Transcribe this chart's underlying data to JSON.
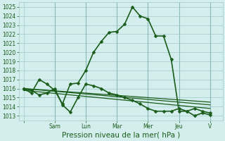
{
  "xlabel": "Pression niveau de la mer( hPa )",
  "background_color": "#d4eeed",
  "plot_bg_color": "#d4eeed",
  "grid_color": "#a8cfcf",
  "line_color": "#1a5c1a",
  "ylim": [
    1012.5,
    1025.5
  ],
  "yticks": [
    1013,
    1014,
    1015,
    1016,
    1017,
    1018,
    1019,
    1020,
    1021,
    1022,
    1023,
    1024,
    1025
  ],
  "day_labels": [
    "",
    "Sam",
    "Lun",
    "Mar",
    "Mer",
    "Jeu",
    "V"
  ],
  "day_positions": [
    0,
    2,
    4,
    6,
    8,
    10,
    12
  ],
  "xlim": [
    -0.3,
    12.8
  ],
  "series": [
    {
      "x": [
        0,
        0.5,
        1,
        1.5,
        2,
        2.5,
        3,
        3.5,
        4,
        4.5,
        5,
        5.5,
        6,
        6.5,
        7,
        7.5,
        8,
        8.5,
        9,
        9.5,
        10,
        10.5,
        11,
        11.5,
        12
      ],
      "y": [
        1016.0,
        1015.5,
        1017.0,
        1016.5,
        1015.8,
        1014.3,
        1016.5,
        1016.6,
        1018.0,
        1020.0,
        1021.2,
        1022.2,
        1022.3,
        1023.1,
        1025.0,
        1024.0,
        1023.7,
        1021.8,
        1021.8,
        1019.2,
        1013.5,
        1013.5,
        1013.8,
        1013.5,
        1013.3
      ],
      "color": "#1a5c1a",
      "lw": 1.2,
      "marker": "D",
      "ms": 2.5,
      "zorder": 5
    },
    {
      "x": [
        0,
        12
      ],
      "y": [
        1016.0,
        1014.5
      ],
      "color": "#1a5c1a",
      "lw": 0.9,
      "marker": null,
      "ms": 0,
      "zorder": 3
    },
    {
      "x": [
        0,
        12
      ],
      "y": [
        1016.0,
        1014.2
      ],
      "color": "#1a5c1a",
      "lw": 0.9,
      "marker": null,
      "ms": 0,
      "zorder": 3
    },
    {
      "x": [
        0,
        12
      ],
      "y": [
        1015.8,
        1013.8
      ],
      "color": "#1a5c1a",
      "lw": 0.9,
      "marker": null,
      "ms": 0,
      "zorder": 3
    },
    {
      "x": [
        0,
        0.5,
        1,
        1.5,
        2,
        2.5,
        3,
        3.5,
        4,
        4.5,
        5,
        5.5,
        6,
        6.5,
        7,
        7.5,
        8,
        8.5,
        9,
        9.5,
        10,
        10.5,
        11,
        11.5,
        12
      ],
      "y": [
        1016.0,
        1015.8,
        1015.3,
        1015.5,
        1016.0,
        1014.2,
        1013.4,
        1015.0,
        1016.5,
        1016.3,
        1016.0,
        1015.5,
        1015.3,
        1015.0,
        1014.7,
        1014.3,
        1013.8,
        1013.5,
        1013.5,
        1013.5,
        1013.8,
        1013.5,
        1013.0,
        1013.3,
        1013.1
      ],
      "color": "#1a5c1a",
      "lw": 1.2,
      "marker": "D",
      "ms": 2.5,
      "zorder": 4
    }
  ],
  "tick_fontsize": 5.5,
  "label_fontsize": 7.5,
  "figsize": [
    3.2,
    2.0
  ],
  "dpi": 100
}
